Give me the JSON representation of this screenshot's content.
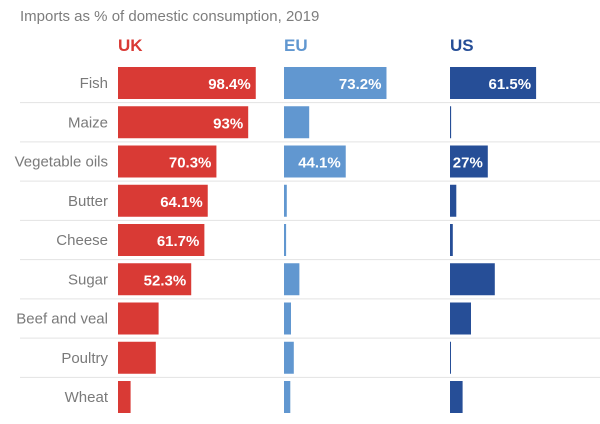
{
  "chart_data": {
    "type": "bar",
    "orientation": "horizontal",
    "subtitle": "Imports as % of domestic consumption, 2019",
    "categories": [
      "Fish",
      "Maize",
      "Vegetable oils",
      "Butter",
      "Cheese",
      "Sugar",
      "Beef and veal",
      "Poultry",
      "Wheat"
    ],
    "xlim": [
      0,
      100
    ],
    "grid": false,
    "legend": "none",
    "series": [
      {
        "name": "UK",
        "color": "#d93a35",
        "values": [
          98.4,
          93,
          70.3,
          64.1,
          61.7,
          52.3,
          29,
          27,
          9
        ],
        "labels": [
          "98.4%",
          "93%",
          "70.3%",
          "64.1%",
          "61.7%",
          "52.3%",
          "",
          "",
          ""
        ]
      },
      {
        "name": "EU",
        "color": "#6197d0",
        "values": [
          73.2,
          18,
          44.1,
          2,
          1.5,
          11,
          5,
          7,
          4.5
        ],
        "labels": [
          "73.2%",
          "",
          "44.1%",
          "",
          "",
          "",
          "",
          "",
          ""
        ]
      },
      {
        "name": "US",
        "color": "#264e97",
        "values": [
          61.5,
          0.8,
          27,
          4.5,
          2,
          32,
          15,
          0.6,
          9
        ],
        "labels": [
          "61.5%",
          "",
          "27%",
          "",
          "",
          "",
          "",
          "",
          ""
        ]
      }
    ]
  }
}
